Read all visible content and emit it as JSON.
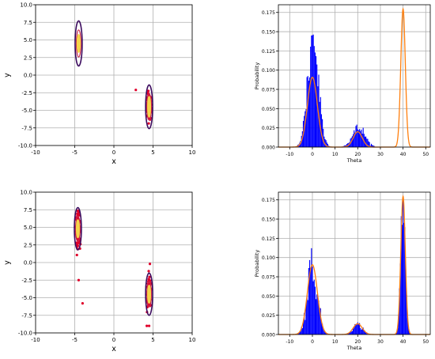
{
  "chart_data": [
    {
      "type": "scatter",
      "panel": "top-left",
      "xlabel": "x",
      "ylabel": "y",
      "xlim": [
        -10,
        10
      ],
      "ylim": [
        -10,
        10
      ],
      "xticks": [
        -10,
        -5,
        0,
        5,
        10
      ],
      "yticks": [
        -10.0,
        -7.5,
        -5.0,
        -2.5,
        0.0,
        2.5,
        5.0,
        7.5,
        10.0
      ],
      "grid": true,
      "clusters": [
        {
          "center": [
            -4.5,
            4.5
          ],
          "sx": 0.3,
          "sy": 1.4,
          "ellipse_hw": 0.45,
          "ellipse_hh": 3.2,
          "inner_hw": 0.22,
          "inner_hh": 1.3,
          "points": 0
        },
        {
          "center": [
            4.5,
            -4.5
          ],
          "sx": 0.15,
          "sy": 0.9,
          "ellipse_hw": 0.45,
          "ellipse_hh": 3.1,
          "inner_hw": 0.2,
          "inner_hh": 1.5,
          "points": 140
        }
      ],
      "outliers": [
        [
          2.8,
          -2.1
        ]
      ],
      "colors": {
        "points": "#e0002a",
        "outer_contour": "#3b0a5e",
        "mid_contour": "#c8284a",
        "inner_contour": "#f5d54a"
      }
    },
    {
      "type": "histogram",
      "panel": "top-right",
      "xlabel": "Theta",
      "ylabel": "Probability",
      "xlim": [
        -15,
        52
      ],
      "ylim": [
        0,
        0.185
      ],
      "xticks": [
        -10,
        0,
        10,
        20,
        30,
        40,
        50
      ],
      "yticks": [
        0.0,
        0.025,
        0.05,
        0.075,
        0.1,
        0.125,
        0.15,
        0.175
      ],
      "grid": true,
      "hist_components": [
        {
          "mu": 0.3,
          "sigma": 2.4,
          "weight": 0.85
        },
        {
          "mu": 20.5,
          "sigma": 2.8,
          "weight": 0.17
        }
      ],
      "fit_components": [
        {
          "mu": 0,
          "sigma": 2.2,
          "weight": 0.5
        },
        {
          "mu": 20,
          "sigma": 2.0,
          "weight": 0.1
        },
        {
          "mu": 40,
          "sigma": 1.0,
          "weight": 0.45
        }
      ],
      "colors": {
        "hist": "#0000ff",
        "fit": "#ff7f0e"
      }
    },
    {
      "type": "scatter",
      "panel": "bottom-left",
      "xlabel": "x",
      "ylabel": "y",
      "xlim": [
        -10,
        10
      ],
      "ylim": [
        -10,
        10
      ],
      "xticks": [
        -10,
        -5,
        0,
        5,
        10
      ],
      "yticks": [
        -10.0,
        -7.5,
        -5.0,
        -2.5,
        0.0,
        2.5,
        5.0,
        7.5,
        10.0
      ],
      "grid": true,
      "clusters": [
        {
          "center": [
            -4.6,
            4.8
          ],
          "sx": 0.12,
          "sy": 1.1,
          "ellipse_hw": 0.45,
          "ellipse_hh": 3.0,
          "inner_hw": 0.2,
          "inner_hh": 1.3,
          "points": 150
        },
        {
          "center": [
            4.5,
            -4.5
          ],
          "sx": 0.12,
          "sy": 1.0,
          "ellipse_hw": 0.45,
          "ellipse_hh": 3.0,
          "inner_hw": 0.2,
          "inner_hh": 1.3,
          "points": 150
        }
      ],
      "outliers": [
        [
          -4.5,
          -2.5
        ],
        [
          -4.0,
          -5.8
        ],
        [
          4.6,
          -0.2
        ],
        [
          4.5,
          -9.0
        ],
        [
          4.2,
          -9.0
        ]
      ],
      "colors": {
        "points": "#e0002a",
        "outer_contour": "#3b0a5e",
        "mid_contour": "#c8284a",
        "inner_contour": "#f5d54a"
      }
    },
    {
      "type": "histogram",
      "panel": "bottom-right",
      "xlabel": "Theta",
      "ylabel": "Probability",
      "xlim": [
        -15,
        52
      ],
      "ylim": [
        0,
        0.185
      ],
      "xticks": [
        -10,
        0,
        10,
        20,
        30,
        40,
        50
      ],
      "yticks": [
        0.0,
        0.025,
        0.05,
        0.075,
        0.1,
        0.125,
        0.15,
        0.175
      ],
      "grid": true,
      "hist_components": [
        {
          "mu": 0,
          "sigma": 2.2,
          "weight": 0.5
        },
        {
          "mu": 20,
          "sigma": 2.2,
          "weight": 0.07
        },
        {
          "mu": 40,
          "sigma": 1.0,
          "weight": 0.43
        }
      ],
      "fit_components": [
        {
          "mu": 0,
          "sigma": 2.2,
          "weight": 0.5
        },
        {
          "mu": 20,
          "sigma": 2.0,
          "weight": 0.07
        },
        {
          "mu": 40,
          "sigma": 1.0,
          "weight": 0.45
        }
      ],
      "colors": {
        "hist": "#0000ff",
        "fit": "#ff7f0e"
      }
    }
  ]
}
